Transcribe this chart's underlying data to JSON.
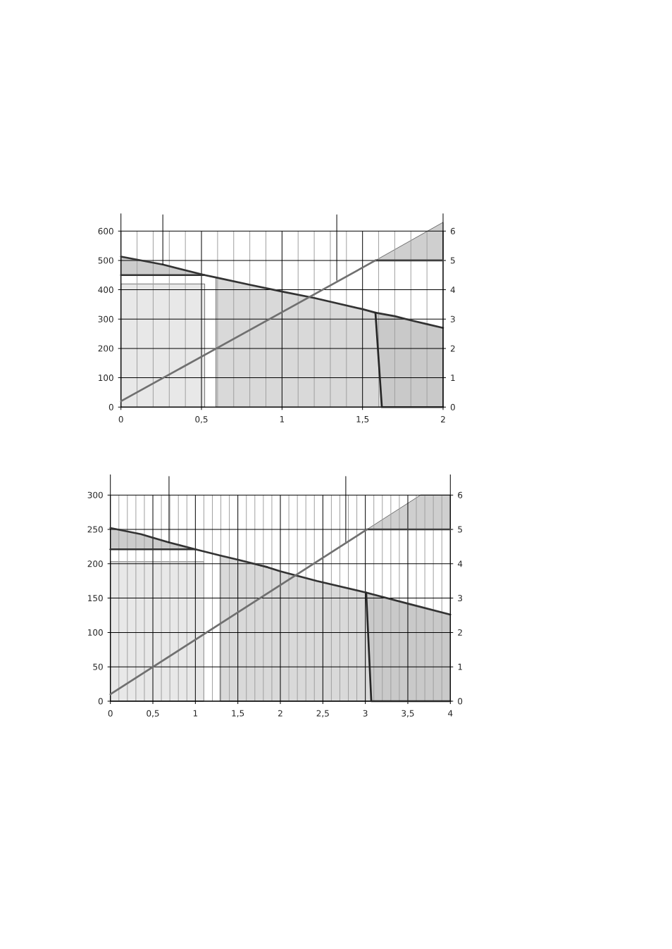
{
  "chart_data": [
    {
      "type": "line",
      "xlim": [
        0,
        2
      ],
      "ylim": [
        0,
        660
      ],
      "y2lim": [
        0,
        6.6
      ],
      "grid": true,
      "xticks": [
        0,
        {
          "value": 0.5,
          "label": "0,5"
        },
        1,
        {
          "value": 1.5,
          "label": "1,5"
        },
        2
      ],
      "yticks": [
        0,
        100,
        200,
        300,
        400,
        500,
        600
      ],
      "y2ticks": [
        0,
        1,
        2,
        3,
        4,
        5,
        6
      ],
      "series": [
        {
          "type": "area",
          "color": "#d9d9d9",
          "x": [
            0.59,
            0.8,
            1,
            1.2,
            1.5,
            1.58,
            1.62
          ],
          "values": [
            442,
            417,
            394,
            372,
            334,
            322,
            0
          ]
        },
        {
          "type": "area",
          "color": "#e8e8e8",
          "x": [
            0,
            0.52
          ],
          "values": [
            420,
            420
          ]
        },
        {
          "color": "#333333",
          "x": [
            0,
            0.26,
            0.52,
            0.59,
            0.8,
            1,
            1.2,
            1.5,
            1.58,
            1.7,
            1.8,
            1.9,
            2
          ],
          "values": [
            513,
            486,
            450,
            442,
            417,
            394,
            372,
            334,
            322,
            310,
            296,
            283,
            270
          ]
        },
        {
          "color": "#333333",
          "x": [
            0,
            0.26,
            0.52
          ],
          "values": [
            450,
            450,
            450
          ],
          "lower": [
            450,
            450,
            450
          ],
          "upper": [
            513,
            486,
            450
          ]
        },
        {
          "color": "#262626",
          "x": [
            1.58,
            1.62,
            1.7,
            1.8,
            1.9,
            2
          ],
          "values": [
            322,
            0,
            0,
            0,
            0,
            0
          ],
          "lower": [
            322,
            0,
            0,
            0,
            0,
            0
          ],
          "upper": [
            322,
            318,
            310,
            296,
            283,
            270
          ]
        },
        {
          "color": "#404040",
          "axis": "y2",
          "x": [
            1.58,
            2
          ],
          "values": [
            5,
            5
          ],
          "lower": [
            5,
            5
          ],
          "upper": [
            5,
            6.3
          ]
        },
        {
          "color": "#707070",
          "axis": "y2",
          "x": [
            0,
            1.58
          ],
          "values": [
            0.2,
            5
          ]
        },
        {
          "color": "#000000",
          "x": [
            0.26,
            0.26
          ],
          "values": [
            656,
            486
          ]
        },
        {
          "color": "#000000",
          "x": [
            1.34,
            1.34
          ],
          "values": [
            656,
            432
          ]
        }
      ]
    },
    {
      "type": "line",
      "xlim": [
        0,
        4
      ],
      "ylim": [
        0,
        330
      ],
      "y2lim": [
        0,
        6.6
      ],
      "grid": true,
      "xticks": [
        0,
        {
          "value": 0.5,
          "label": "0,5"
        },
        1,
        {
          "value": 1.5,
          "label": "1,5"
        },
        2,
        {
          "value": 2.5,
          "label": "2,5"
        },
        3,
        {
          "value": 3.5,
          "label": "3,5"
        },
        4
      ],
      "yticks": [
        0,
        50,
        100,
        150,
        200,
        250,
        300
      ],
      "y2ticks": [
        0,
        1,
        2,
        3,
        4,
        5,
        6
      ],
      "series": [
        {
          "type": "area",
          "color": "#d9d9d9",
          "x": [
            1.29,
            1.5,
            2,
            2.43,
            3.01,
            3.07
          ],
          "values": [
            212,
            206,
            189,
            175,
            158,
            0
          ]
        },
        {
          "type": "area",
          "color": "#e8e8e8",
          "x": [
            0,
            1.1
          ],
          "values": [
            203,
            203
          ]
        },
        {
          "color": "#333333",
          "x": [
            0,
            0.36,
            0.69,
            1,
            1.29,
            1.5,
            1.85,
            2,
            2.43,
            3.01,
            3.5,
            4
          ],
          "values": [
            252,
            243,
            231,
            221,
            212,
            206,
            195,
            189,
            175,
            158,
            142,
            126
          ]
        },
        {
          "color": "#333333",
          "x": [
            0,
            0.36,
            0.69,
            1
          ],
          "values": [
            221,
            221,
            221,
            221
          ],
          "lower": [
            221,
            221,
            221,
            221
          ],
          "upper": [
            252,
            243,
            231,
            221
          ]
        },
        {
          "color": "#262626",
          "x": [
            3.01,
            3.07,
            3.5,
            4
          ],
          "values": [
            158,
            0,
            0,
            0
          ],
          "lower": [
            158,
            0,
            0,
            0
          ],
          "upper": [
            158,
            156,
            142,
            126
          ]
        },
        {
          "color": "#404040",
          "axis": "y2",
          "x": [
            3.02,
            3.65,
            4
          ],
          "values": [
            5,
            5,
            5
          ],
          "lower": [
            5,
            5,
            5
          ],
          "upper": [
            5,
            6,
            6
          ]
        },
        {
          "color": "#707070",
          "axis": "y2",
          "x": [
            0,
            3.02
          ],
          "values": [
            0.2,
            5
          ]
        },
        {
          "color": "#000000",
          "x": [
            0.69,
            0.69
          ],
          "values": [
            327,
            231
          ]
        },
        {
          "color": "#000000",
          "x": [
            2.77,
            2.77
          ],
          "values": [
            327,
            232
          ]
        }
      ]
    }
  ]
}
